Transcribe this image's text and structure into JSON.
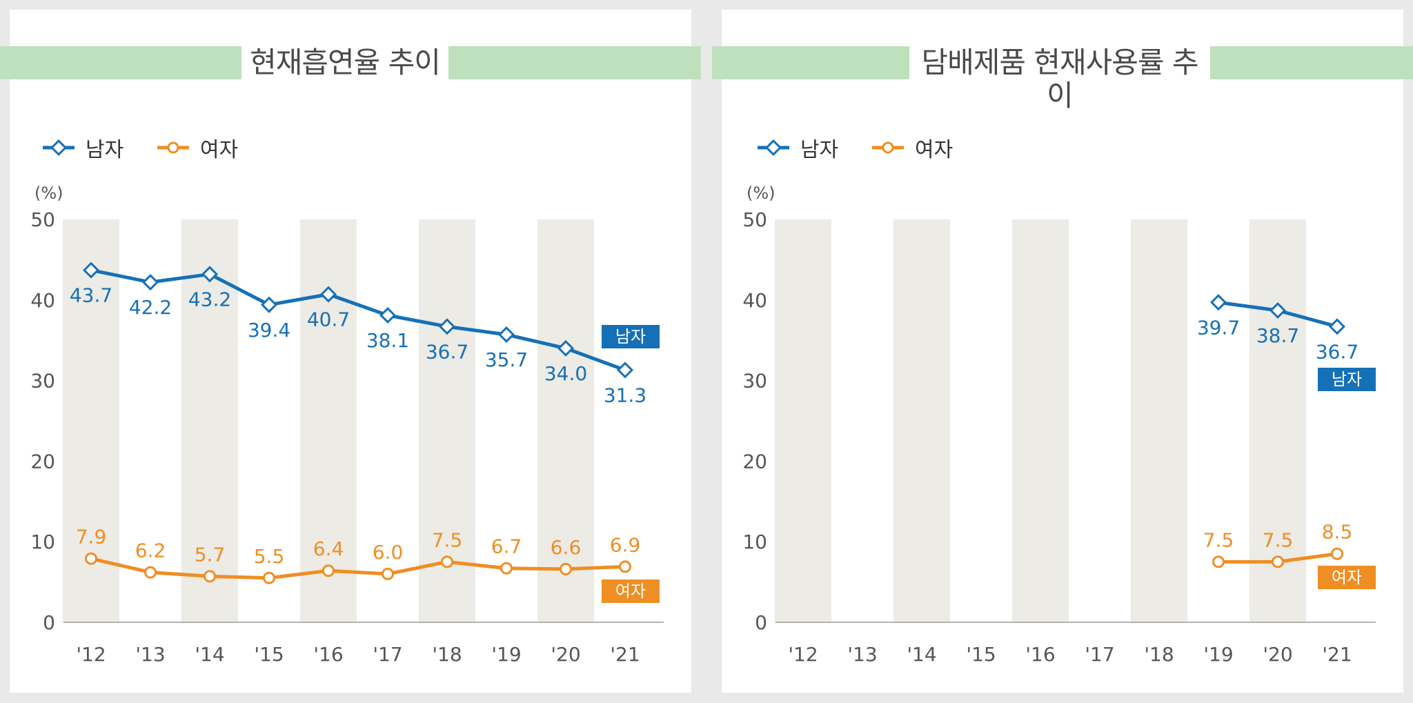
{
  "colors": {
    "male": "#1570b7",
    "female": "#ef8e23",
    "band": "#ecebe5",
    "title_bar": "#bfe0bd"
  },
  "legend": {
    "male": "남자",
    "female": "여자"
  },
  "unit_label": "(%)",
  "chart_data": [
    {
      "type": "line",
      "title": "현재흡연율 추이",
      "x": [
        "'12",
        "'13",
        "'14",
        "'15",
        "'16",
        "'17",
        "'18",
        "'19",
        "'20",
        "'21"
      ],
      "ylim": [
        0,
        50
      ],
      "yticks": [
        "0",
        "10",
        "20",
        "30",
        "40",
        "50"
      ],
      "series": [
        {
          "name": "남자",
          "values": [
            43.7,
            42.2,
            43.2,
            39.4,
            40.7,
            38.1,
            36.7,
            35.7,
            34.0,
            31.3
          ],
          "labels": [
            "43.7",
            "42.2",
            "43.2",
            "39.4",
            "40.7",
            "38.1",
            "36.7",
            "35.7",
            "34.0",
            "31.3"
          ]
        },
        {
          "name": "여자",
          "values": [
            7.9,
            6.2,
            5.7,
            5.5,
            6.4,
            6.0,
            7.5,
            6.7,
            6.6,
            6.9
          ],
          "labels": [
            "7.9",
            "6.2",
            "5.7",
            "5.5",
            "6.4",
            "6.0",
            "7.5",
            "6.7",
            "6.6",
            "6.9"
          ]
        }
      ]
    },
    {
      "type": "line",
      "title": "담배제품 현재사용률 추이",
      "x": [
        "'12",
        "'13",
        "'14",
        "'15",
        "'16",
        "'17",
        "'18",
        "'19",
        "'20",
        "'21"
      ],
      "ylim": [
        0,
        50
      ],
      "yticks": [
        "0",
        "10",
        "20",
        "30",
        "40",
        "50"
      ],
      "series": [
        {
          "name": "남자",
          "values": [
            null,
            null,
            null,
            null,
            null,
            null,
            null,
            39.7,
            38.7,
            36.7
          ],
          "labels": [
            null,
            null,
            null,
            null,
            null,
            null,
            null,
            "39.7",
            "38.7",
            "36.7"
          ]
        },
        {
          "name": "여자",
          "values": [
            null,
            null,
            null,
            null,
            null,
            null,
            null,
            7.5,
            7.5,
            8.5
          ],
          "labels": [
            null,
            null,
            null,
            null,
            null,
            null,
            null,
            "7.5",
            "7.5",
            "8.5"
          ]
        }
      ]
    }
  ]
}
